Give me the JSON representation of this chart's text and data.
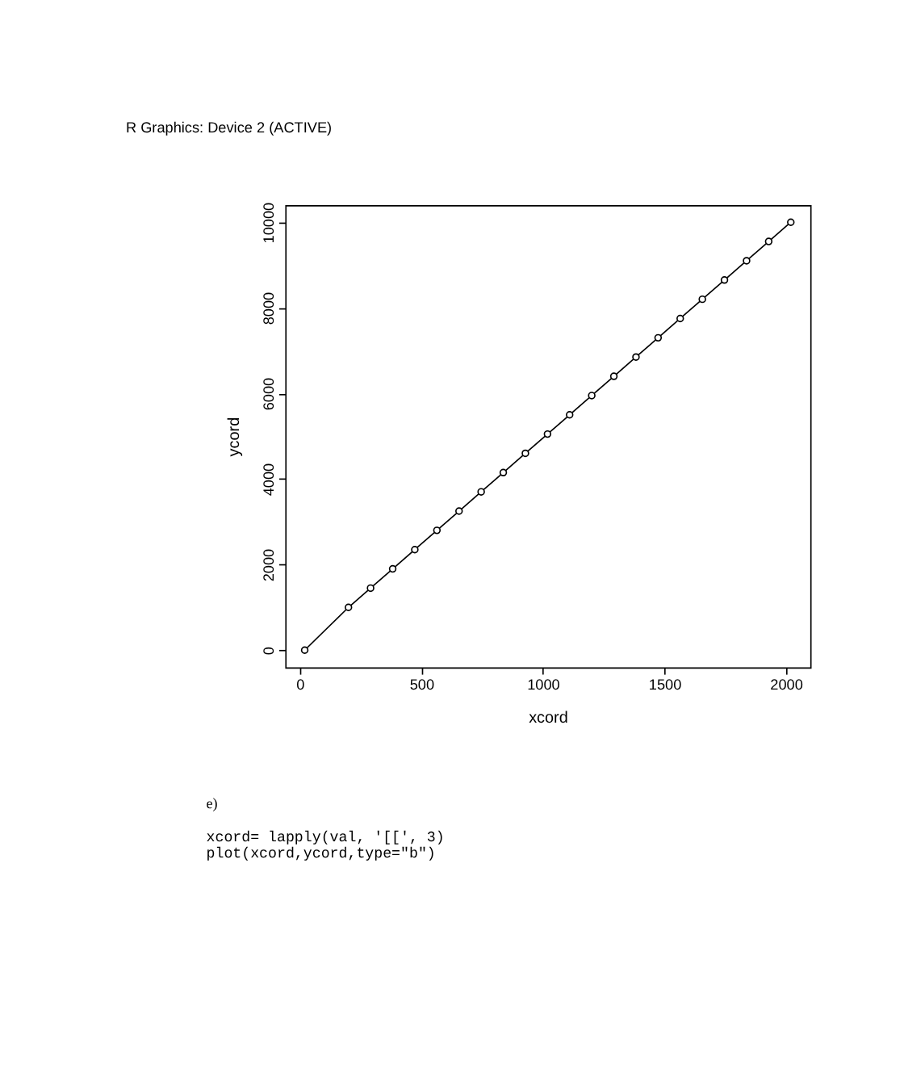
{
  "chart_data": {
    "type": "line",
    "title": "R Graphics: Device 2 (ACTIVE)",
    "xlabel": "xcord",
    "ylabel": "ycord",
    "x": [
      20,
      200,
      291,
      382,
      473,
      564,
      655,
      746,
      837,
      928,
      1019,
      1110,
      1201,
      1292,
      1383,
      1474,
      1565,
      1656,
      1747,
      1838,
      1929,
      2020
    ],
    "series": [
      {
        "color": "#000000",
        "values": [
          0,
          1000,
          1450,
          1900,
          2350,
          2800,
          3250,
          3700,
          4150,
          4600,
          5050,
          5500,
          5950,
          6400,
          6850,
          7300,
          7750,
          8200,
          8650,
          9100,
          9550,
          10000
        ]
      }
    ],
    "xlim": [
      -60,
      2100
    ],
    "ylim": [
      -400,
      10400
    ],
    "xticks": [
      0,
      500,
      1000,
      1500,
      2000
    ],
    "yticks": [
      0,
      2000,
      4000,
      6000,
      8000,
      10000
    ],
    "marker": "circle",
    "line_style": "solid",
    "grid": false,
    "annotations": [
      "e)",
      "xcord= lapply(val, '[[', 3)",
      " plot(xcord,ycord,type=\"b\")"
    ]
  }
}
